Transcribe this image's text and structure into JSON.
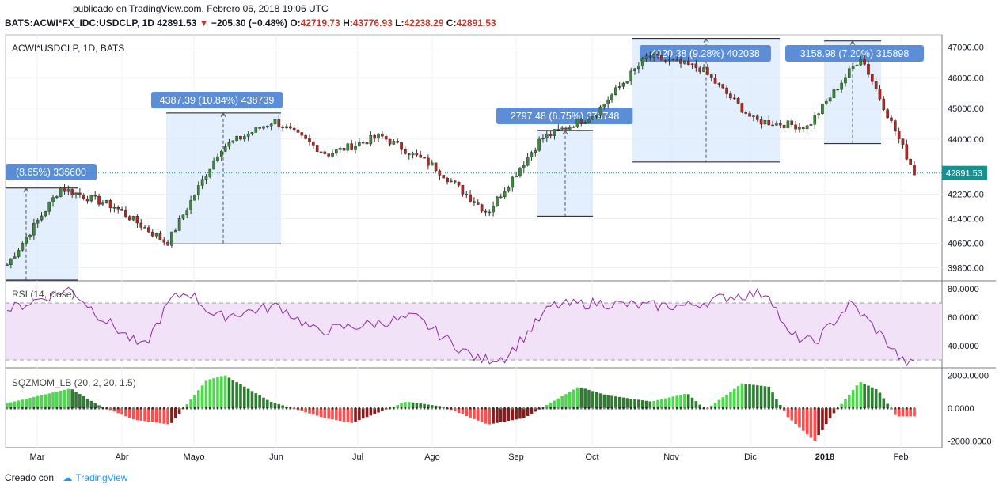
{
  "header": {
    "published": "publicado en TradingView.com, Febrero 06, 2018 19:06 UTC",
    "symbol_line": "BATS:ACWI*FX_IDC:USDCLP, 1D",
    "last": "42891.53",
    "change_arrow": "▼",
    "change": "−205.30 (−0.48%)",
    "o_label": "O:",
    "o_value": "42719.73",
    "h_label": "H:",
    "h_value": "43776.93",
    "l_label": "L:",
    "l_value": "42238.29",
    "c_label": "C:",
    "c_value": "42891.53"
  },
  "footer": {
    "created": "Creado con",
    "brand": "TradingView"
  },
  "chart_data": [
    {
      "type": "candlestick",
      "title": "ACWI*USDCLP, 1D, BATS",
      "ylim": [
        39400,
        47400
      ],
      "y_ticks": [
        "47000.00",
        "46000.00",
        "45000.00",
        "44000.00",
        "42200.00",
        "41400.00",
        "40600.00",
        "39800.00"
      ],
      "x_ticks": [
        "Mar",
        "Abr",
        "Mayo",
        "Jun",
        "Jul",
        "Ago",
        "Sep",
        "Oct",
        "Nov",
        "Dic",
        "2018",
        "Feb"
      ],
      "last_price_label": "42891.53",
      "approx_path_keypoints": [
        [
          "Feb start",
          39900
        ],
        [
          "Mar mid",
          42400
        ],
        [
          "Abr",
          41800
        ],
        [
          "Abr end",
          40600
        ],
        [
          "Mayo mid",
          43700
        ],
        [
          "Jun",
          44600
        ],
        [
          "Jul",
          43500
        ],
        [
          "Ago",
          44100
        ],
        [
          "Ago end",
          43100
        ],
        [
          "Sep",
          41600
        ],
        [
          "Oct",
          44000
        ],
        [
          "Nov",
          44800
        ],
        [
          "Dic",
          46700
        ],
        [
          "Dic mid",
          46300
        ],
        [
          "Dic end",
          44600
        ],
        [
          "2018",
          44400
        ],
        [
          "Ene end",
          46700
        ],
        [
          "Feb",
          42900
        ]
      ],
      "measurements": [
        "(8.65%) 336600",
        "4387.39 (10.84%) 438739",
        "2797.48 (6.75%) 279748",
        "4020.38 (9.28%) 402038",
        "3158.98 (7.20%) 315898"
      ]
    },
    {
      "type": "line",
      "title": "RSI (14, close)",
      "ylim": [
        25,
        85
      ],
      "y_ticks": [
        "80.0000",
        "60.0000",
        "40.0000"
      ],
      "band": [
        30,
        70
      ],
      "approx_keypoints": [
        [
          0,
          65
        ],
        [
          0.07,
          80
        ],
        [
          0.1,
          62
        ],
        [
          0.15,
          38
        ],
        [
          0.18,
          72
        ],
        [
          0.2,
          78
        ],
        [
          0.23,
          60
        ],
        [
          0.3,
          68
        ],
        [
          0.34,
          50
        ],
        [
          0.4,
          55
        ],
        [
          0.45,
          60
        ],
        [
          0.49,
          42
        ],
        [
          0.52,
          30
        ],
        [
          0.55,
          32
        ],
        [
          0.6,
          68
        ],
        [
          0.65,
          70
        ],
        [
          0.7,
          68
        ],
        [
          0.75,
          68
        ],
        [
          0.8,
          75
        ],
        [
          0.84,
          77
        ],
        [
          0.86,
          48
        ],
        [
          0.89,
          42
        ],
        [
          0.93,
          70
        ],
        [
          0.96,
          50
        ],
        [
          0.99,
          27
        ]
      ]
    },
    {
      "type": "bar",
      "title": "SQZMOM_LB (20, 2, 20, 1.5)",
      "ylim": [
        -2400,
        2400
      ],
      "y_ticks": [
        "2000.0000",
        "0.0000",
        "-2000.0000"
      ],
      "approx_keypoints": [
        [
          0.0,
          300
        ],
        [
          0.07,
          1200
        ],
        [
          0.1,
          200
        ],
        [
          0.14,
          -700
        ],
        [
          0.18,
          -1000
        ],
        [
          0.22,
          1700
        ],
        [
          0.24,
          2000
        ],
        [
          0.29,
          400
        ],
        [
          0.35,
          -600
        ],
        [
          0.38,
          -900
        ],
        [
          0.44,
          400
        ],
        [
          0.48,
          100
        ],
        [
          0.53,
          -1000
        ],
        [
          0.57,
          -600
        ],
        [
          0.63,
          1300
        ],
        [
          0.66,
          800
        ],
        [
          0.71,
          400
        ],
        [
          0.75,
          900
        ],
        [
          0.77,
          -100
        ],
        [
          0.81,
          1500
        ],
        [
          0.84,
          1300
        ],
        [
          0.86,
          -500
        ],
        [
          0.89,
          -2000
        ],
        [
          0.91,
          -400
        ],
        [
          0.94,
          1600
        ],
        [
          0.96,
          1100
        ],
        [
          0.98,
          -500
        ]
      ]
    }
  ]
}
